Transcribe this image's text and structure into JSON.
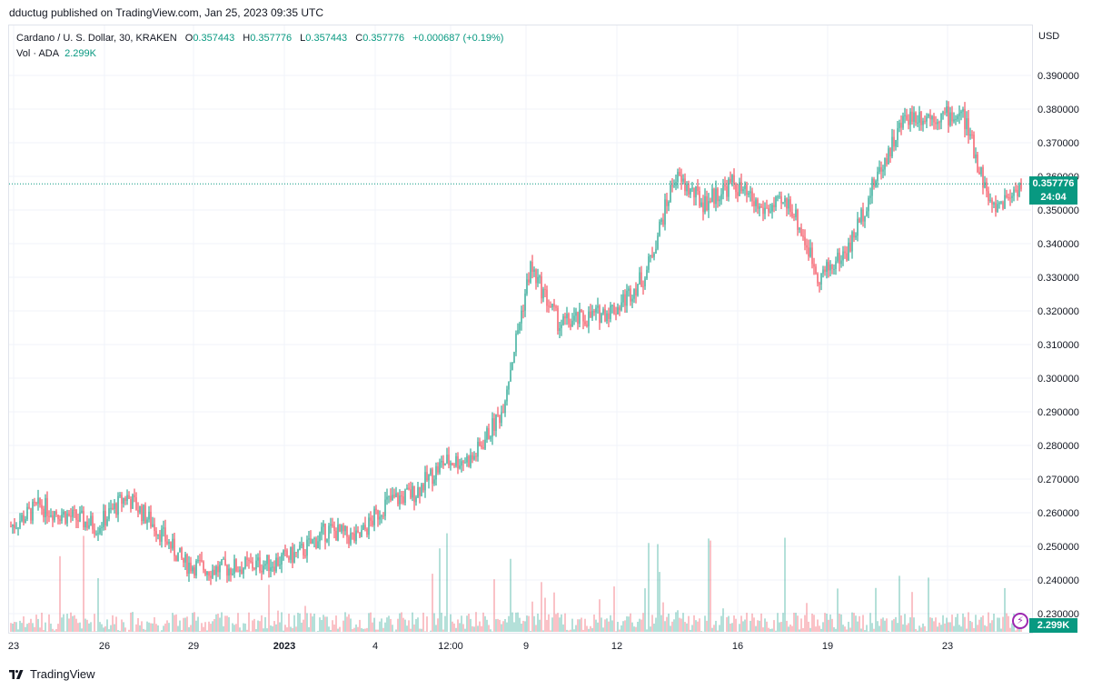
{
  "header": {
    "publish_line": "dductug published on TradingView.com, Jan 25, 2023 09:35 UTC"
  },
  "legend": {
    "symbol": "Cardano / U. S. Dollar, 30, KRAKEN",
    "open_label": "O",
    "open": "0.357443",
    "high_label": "H",
    "high": "0.357776",
    "low_label": "L",
    "low": "0.357443",
    "close_label": "C",
    "close": "0.357776",
    "change": "+0.000687 (+0.19%)",
    "volume_label": "Vol · ADA",
    "volume": "2.299K"
  },
  "price_axis": {
    "unit": "USD"
  },
  "last_price": {
    "price": "0.357776",
    "countdown": "24:04"
  },
  "volume_tag": "2.299K",
  "brand": {
    "name": "TradingView"
  },
  "colors": {
    "up": "#089981",
    "down": "#f23645",
    "grid": "#f0f3fa",
    "accent": "#9c27b0"
  },
  "chart_data": {
    "type": "candlestick",
    "interval": "30",
    "ylim": [
      0.224,
      0.392
    ],
    "y_ticks": [
      "0.390000",
      "0.380000",
      "0.370000",
      "0.360000",
      "0.350000",
      "0.340000",
      "0.330000",
      "0.320000",
      "0.310000",
      "0.300000",
      "0.290000",
      "0.280000",
      "0.270000",
      "0.260000",
      "0.250000",
      "0.240000",
      "0.230000"
    ],
    "x_ticks": [
      "23",
      "26",
      "29",
      "2023",
      "4",
      "12:00",
      "9",
      "12",
      "16",
      "19",
      "23"
    ],
    "approx_close_path": [
      {
        "x": "23",
        "y": 0.256
      },
      {
        "x": "24",
        "y": 0.262
      },
      {
        "x": "25",
        "y": 0.259
      },
      {
        "x": "26",
        "y": 0.256
      },
      {
        "x": "27",
        "y": 0.265
      },
      {
        "x": "28",
        "y": 0.256
      },
      {
        "x": "29",
        "y": 0.245
      },
      {
        "x": "30",
        "y": 0.243
      },
      {
        "x": "31",
        "y": 0.244
      },
      {
        "x": "2023",
        "y": 0.245
      },
      {
        "x": "2",
        "y": 0.248
      },
      {
        "x": "3",
        "y": 0.255
      },
      {
        "x": "4",
        "y": 0.252
      },
      {
        "x": "4 12:00",
        "y": 0.263
      },
      {
        "x": "6",
        "y": 0.266
      },
      {
        "x": "7",
        "y": 0.275
      },
      {
        "x": "8",
        "y": 0.276
      },
      {
        "x": "8 12:00",
        "y": 0.29
      },
      {
        "x": "9",
        "y": 0.333
      },
      {
        "x": "10",
        "y": 0.316
      },
      {
        "x": "11",
        "y": 0.318
      },
      {
        "x": "12",
        "y": 0.321
      },
      {
        "x": "13",
        "y": 0.331
      },
      {
        "x": "14",
        "y": 0.36
      },
      {
        "x": "15",
        "y": 0.352
      },
      {
        "x": "16",
        "y": 0.358
      },
      {
        "x": "17",
        "y": 0.35
      },
      {
        "x": "18",
        "y": 0.352
      },
      {
        "x": "19",
        "y": 0.33
      },
      {
        "x": "20",
        "y": 0.338
      },
      {
        "x": "21",
        "y": 0.36
      },
      {
        "x": "22",
        "y": 0.378
      },
      {
        "x": "23",
        "y": 0.378
      },
      {
        "x": "24",
        "y": 0.378
      },
      {
        "x": "25",
        "y": 0.35
      },
      {
        "x": "25 09:30",
        "y": 0.357776
      }
    ],
    "last_price_line": 0.357776
  }
}
